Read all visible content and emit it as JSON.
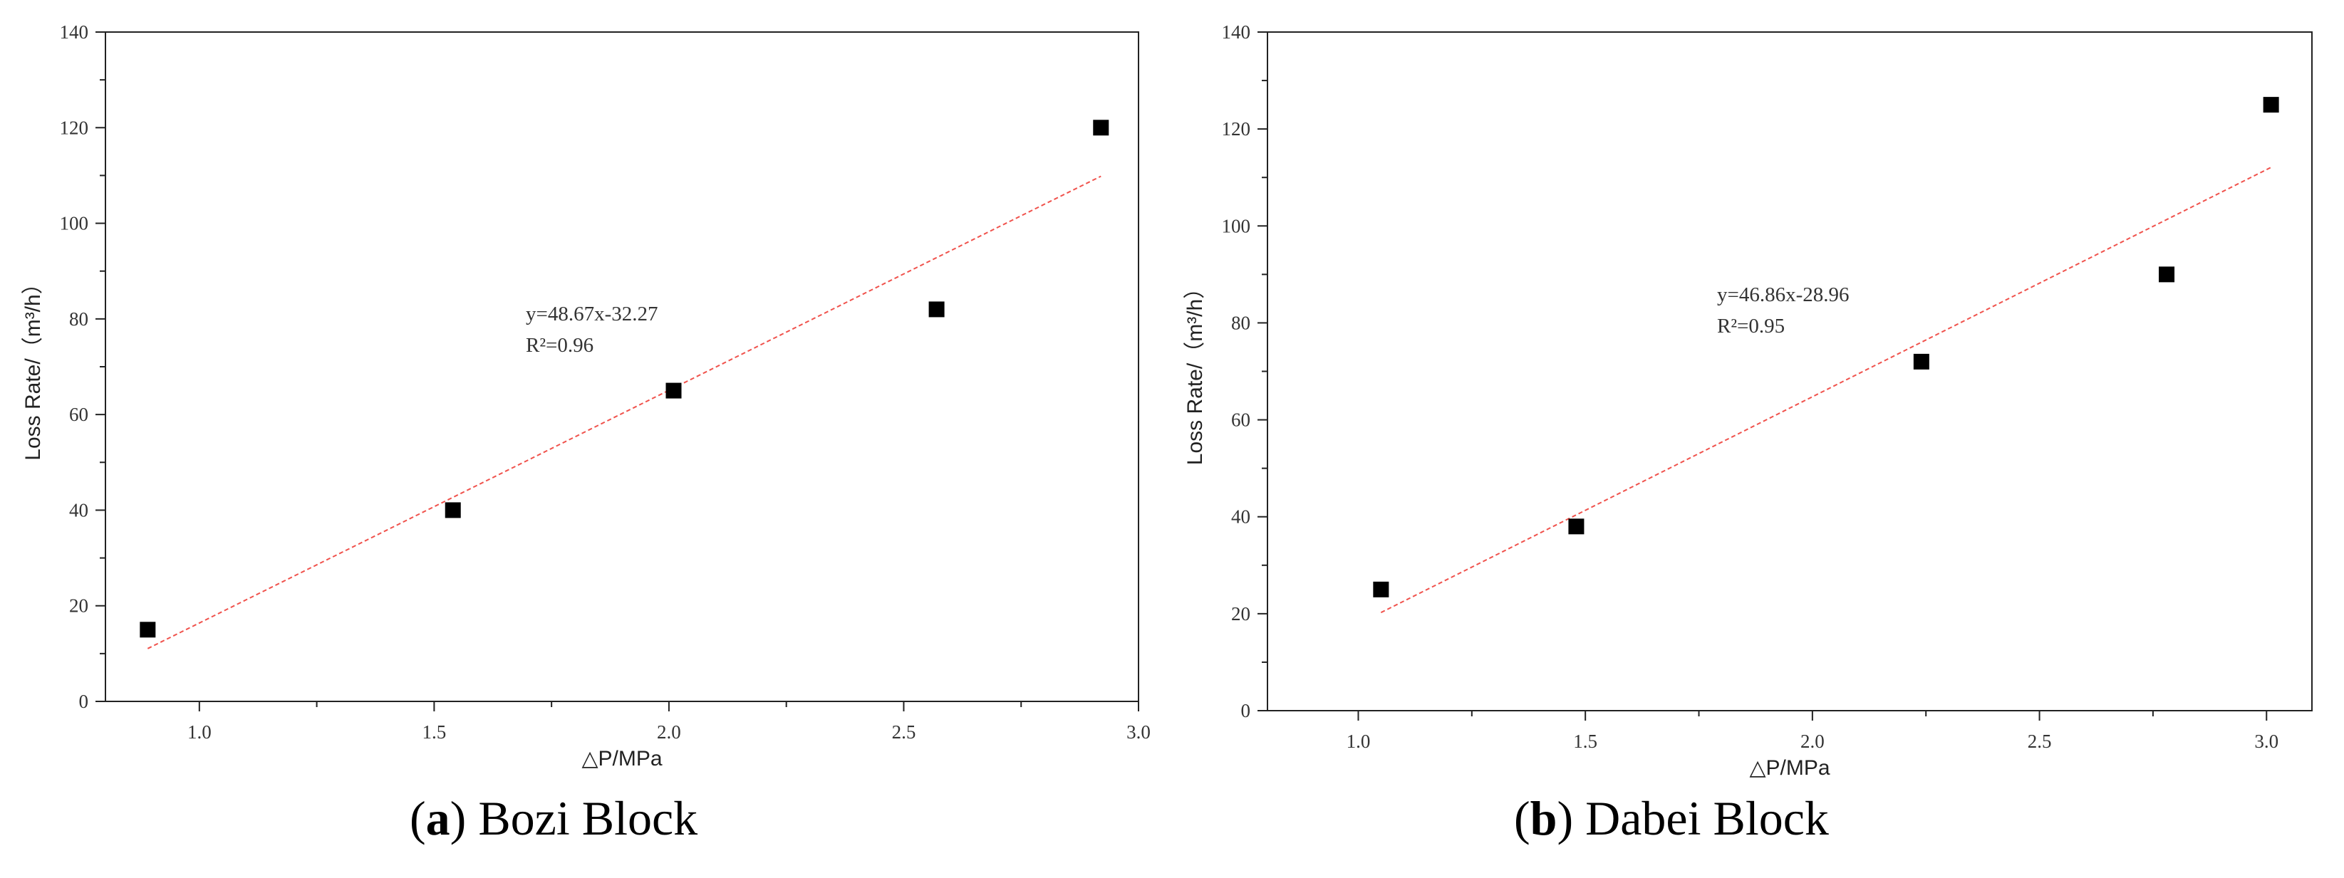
{
  "chart_data": [
    {
      "type": "scatter",
      "caption_letter": "a",
      "caption_text": "Bozi Block",
      "xlabel": "△P/MPa",
      "ylabel": "Loss Rate/（m³/h）",
      "xlim": [
        0.8,
        3.0
      ],
      "ylim": [
        0,
        140
      ],
      "xticks": [
        1.0,
        1.5,
        2.0,
        2.5,
        3.0
      ],
      "xtick_labels": [
        "1.0",
        "1.5",
        "2.0",
        "2.5",
        "3.0"
      ],
      "yticks": [
        0,
        20,
        40,
        60,
        80,
        100,
        120,
        140
      ],
      "ytick_labels": [
        "0",
        "20",
        "40",
        "60",
        "80",
        "100",
        "120",
        "140"
      ],
      "grid": false,
      "x": [
        0.89,
        1.54,
        2.01,
        2.57,
        2.92
      ],
      "y": [
        15,
        40,
        65,
        82,
        120
      ],
      "fit": {
        "slope": 48.67,
        "intercept": -32.27,
        "x_range": [
          0.89,
          2.92
        ],
        "color": "#f0524c"
      },
      "equation": "y=48.67x-32.27",
      "r2_label": "R²=0.96",
      "marker_color": "#000000"
    },
    {
      "type": "scatter",
      "caption_letter": "b",
      "caption_text": "Dabei Block",
      "xlabel": "△P/MPa",
      "ylabel": "Loss Rate/（m³/h）",
      "xlim": [
        0.8,
        3.1
      ],
      "ylim": [
        0,
        140
      ],
      "xticks": [
        1.0,
        1.5,
        2.0,
        2.5,
        3.0
      ],
      "xtick_labels": [
        "1.0",
        "1.5",
        "2.0",
        "2.5",
        "3.0"
      ],
      "yticks": [
        0,
        20,
        40,
        60,
        80,
        100,
        120,
        140
      ],
      "ytick_labels": [
        "0",
        "20",
        "40",
        "60",
        "80",
        "100",
        "120",
        "140"
      ],
      "grid": false,
      "x": [
        1.05,
        1.48,
        2.24,
        2.78,
        3.01
      ],
      "y": [
        25,
        38,
        72,
        90,
        125
      ],
      "fit": {
        "slope": 46.86,
        "intercept": -28.96,
        "x_range": [
          1.05,
          3.01
        ],
        "color": "#f0524c"
      },
      "equation": "y=46.86x-28.96",
      "r2_label": "R²=0.95",
      "marker_color": "#000000"
    }
  ]
}
